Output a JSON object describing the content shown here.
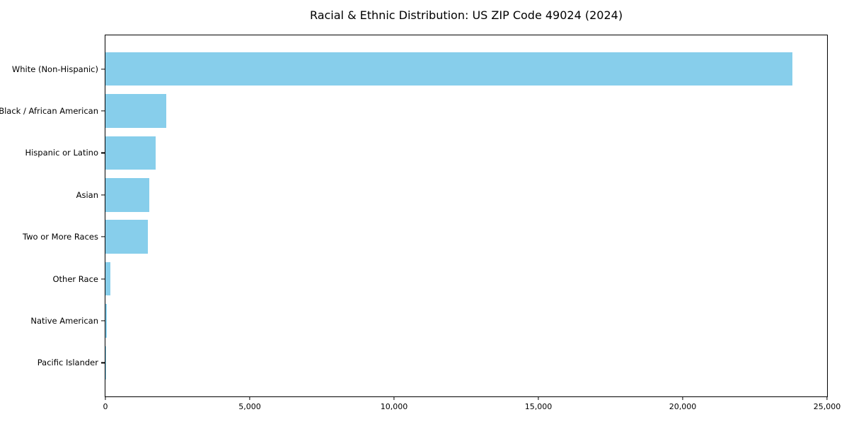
{
  "chart_data": {
    "type": "bar",
    "orientation": "horizontal",
    "title": "Racial & Ethnic Distribution: US ZIP Code 49024 (2024)",
    "categories": [
      "White (Non-Hispanic)",
      "Black / African American",
      "Hispanic or Latino",
      "Asian",
      "Two or More Races",
      "Other Race",
      "Native American",
      "Pacific Islander"
    ],
    "values": [
      23800,
      2100,
      1750,
      1530,
      1480,
      180,
      40,
      10
    ],
    "xlabel": "",
    "ylabel": "",
    "xlim": [
      0,
      25000
    ],
    "xticks": [
      0,
      5000,
      10000,
      15000,
      20000,
      25000
    ],
    "xtick_labels": [
      "0",
      "5,000",
      "10,000",
      "15,000",
      "20,000",
      "25,000"
    ],
    "grid": false,
    "legend": null,
    "bar_color": "#87CEEB",
    "axis_color": "#000000",
    "background_color": "#FFFFFF"
  }
}
